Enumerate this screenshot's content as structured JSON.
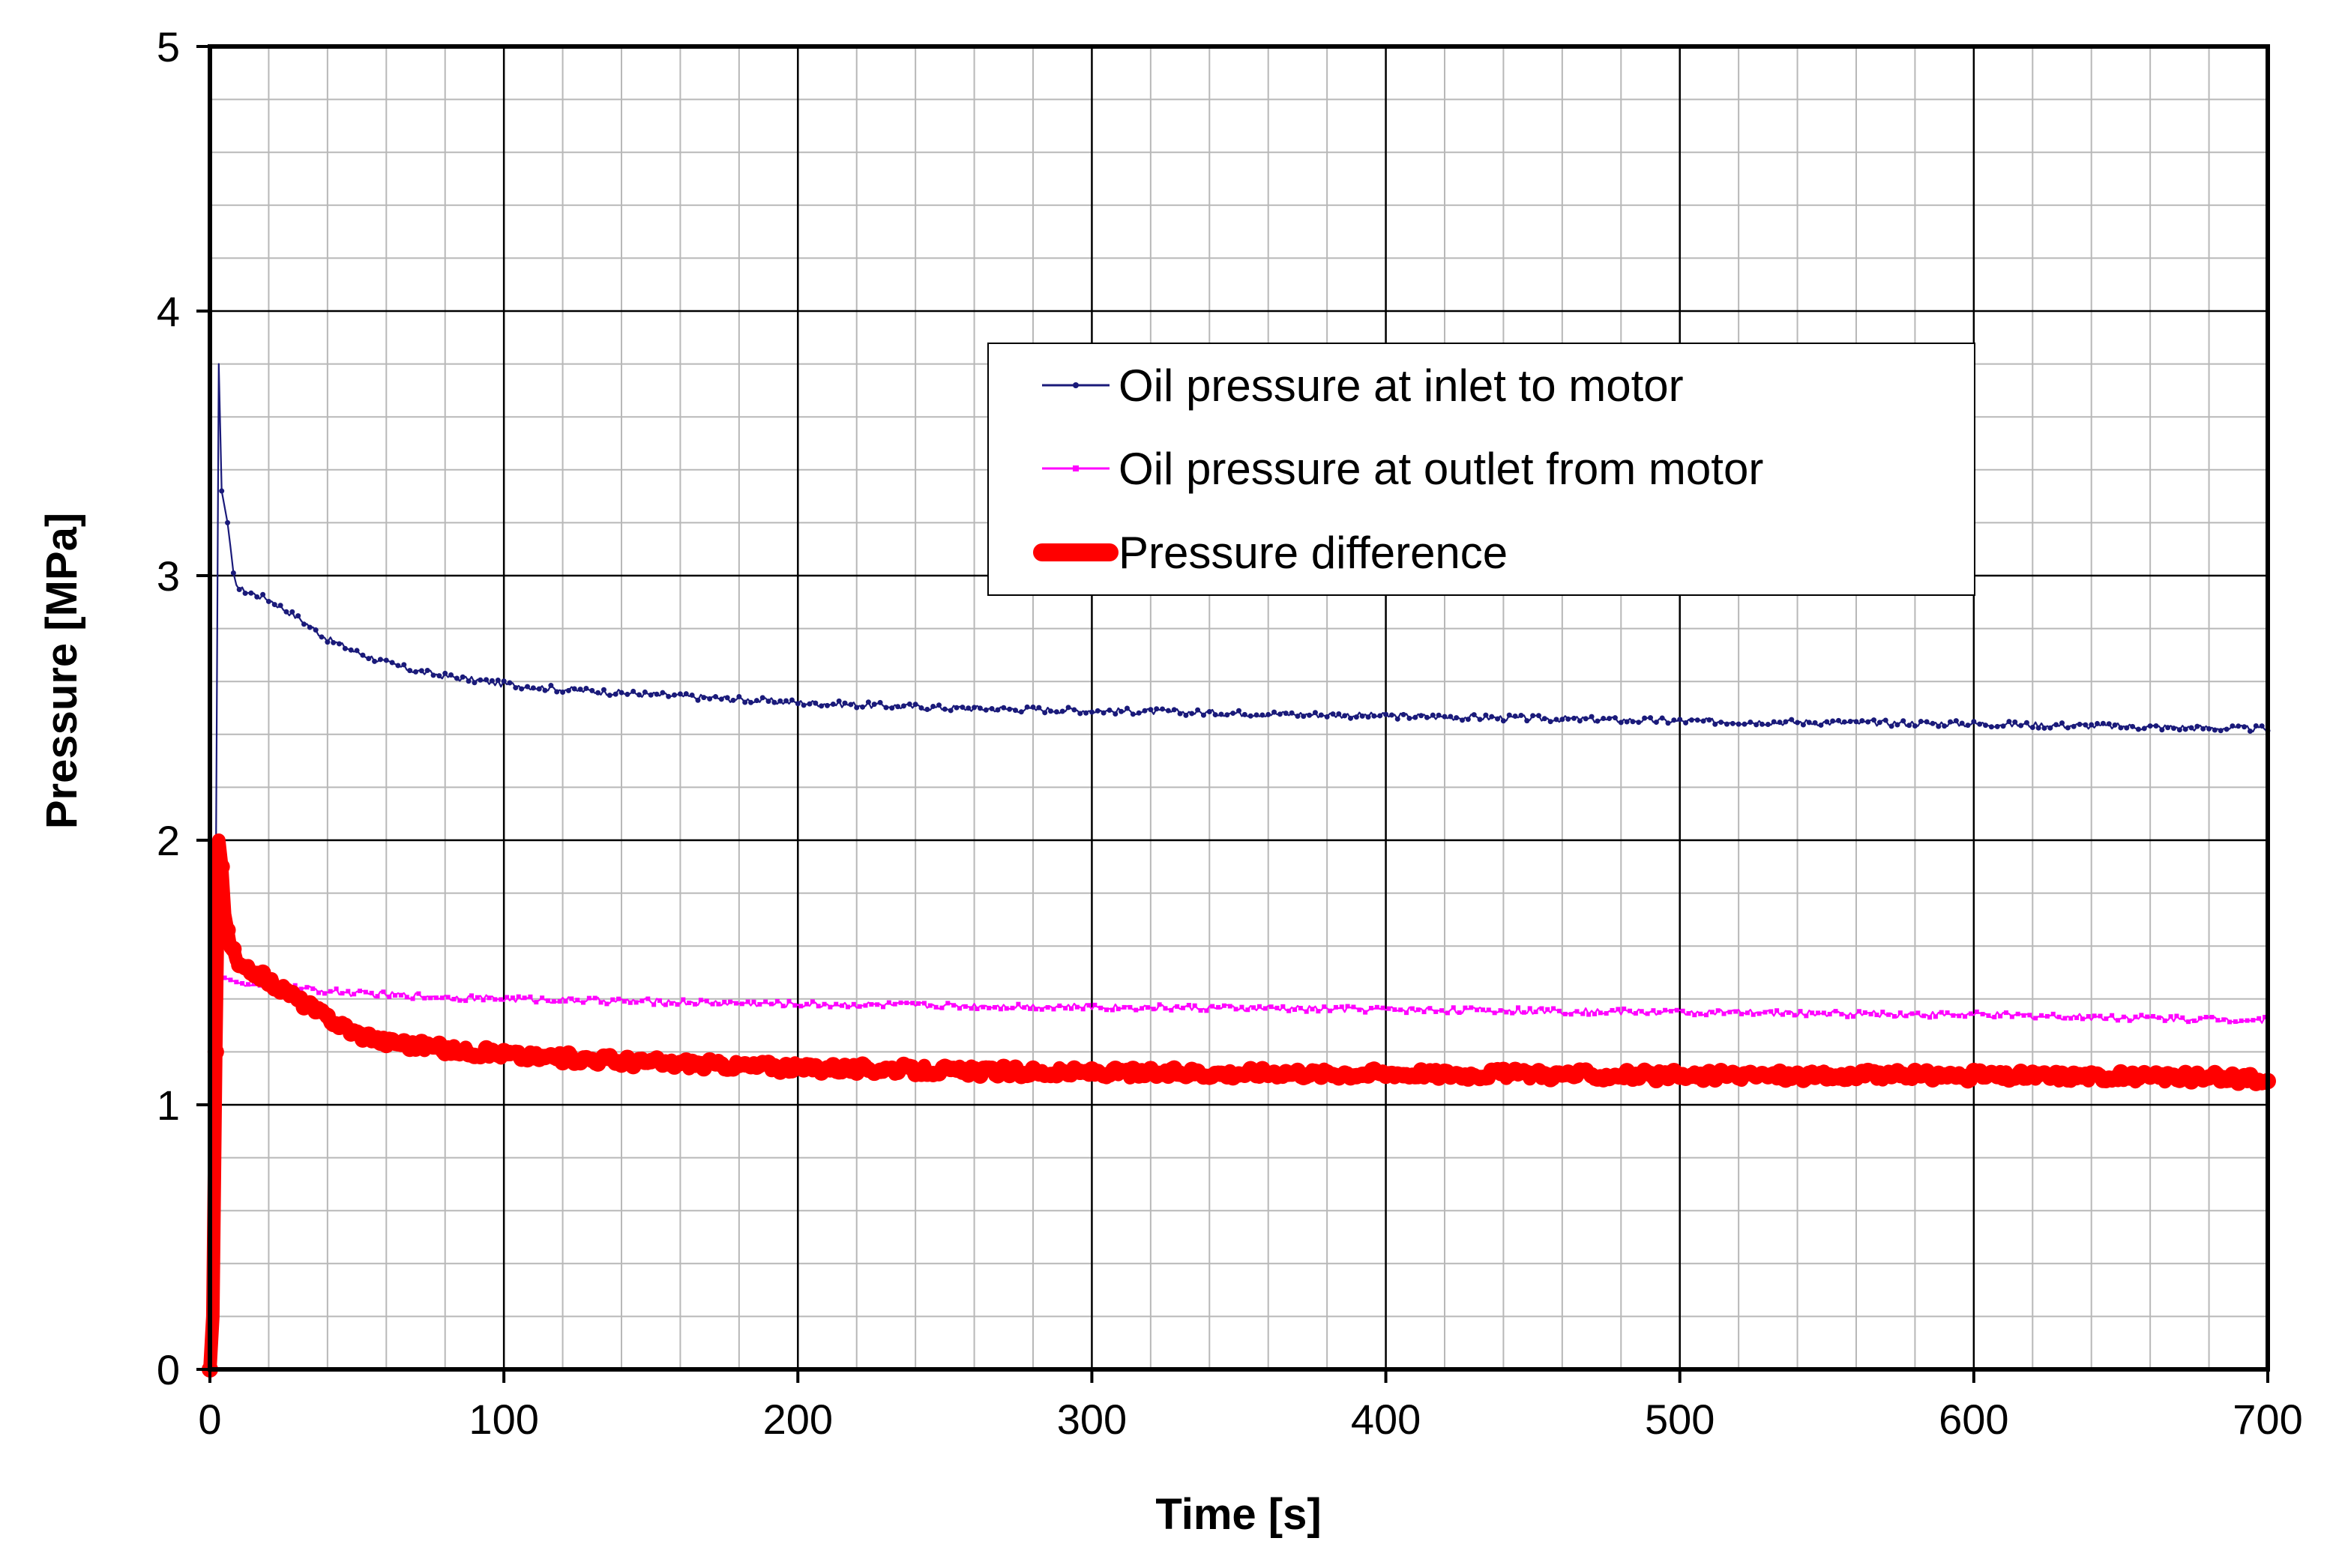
{
  "chart_data": {
    "type": "line",
    "title": "",
    "xlabel": "Time [s]",
    "ylabel": "Pressure [MPa]",
    "xlim": [
      0,
      700
    ],
    "ylim": [
      0,
      5
    ],
    "x_major_ticks": [
      0,
      100,
      200,
      300,
      400,
      500,
      600,
      700
    ],
    "y_major_ticks": [
      0,
      1,
      2,
      3,
      4,
      5
    ],
    "x_minor_step": 20,
    "y_minor_step": 0.2,
    "grid": true,
    "legend_position": "upper-middle-right",
    "series": [
      {
        "name": "Oil pressure at inlet to motor",
        "color": "#1a1a7a",
        "marker": "diamond",
        "line_style": "thin",
        "noise": 0.012,
        "points": [
          [
            0,
            0
          ],
          [
            2,
            1.8
          ],
          [
            3,
            3.8
          ],
          [
            4,
            3.32
          ],
          [
            6,
            3.2
          ],
          [
            8,
            3.0
          ],
          [
            10,
            2.95
          ],
          [
            15,
            2.93
          ],
          [
            20,
            2.91
          ],
          [
            30,
            2.84
          ],
          [
            40,
            2.76
          ],
          [
            50,
            2.71
          ],
          [
            60,
            2.67
          ],
          [
            70,
            2.64
          ],
          [
            80,
            2.62
          ],
          [
            100,
            2.59
          ],
          [
            120,
            2.57
          ],
          [
            150,
            2.55
          ],
          [
            200,
            2.52
          ],
          [
            250,
            2.5
          ],
          [
            300,
            2.49
          ],
          [
            350,
            2.48
          ],
          [
            400,
            2.47
          ],
          [
            450,
            2.46
          ],
          [
            500,
            2.45
          ],
          [
            550,
            2.445
          ],
          [
            600,
            2.44
          ],
          [
            650,
            2.43
          ],
          [
            700,
            2.42
          ]
        ]
      },
      {
        "name": "Oil pressure at outlet from motor",
        "color": "#ff00ff",
        "marker": "square",
        "line_style": "thin",
        "noise": 0.012,
        "points": [
          [
            5,
            1.48
          ],
          [
            10,
            1.46
          ],
          [
            20,
            1.45
          ],
          [
            50,
            1.42
          ],
          [
            100,
            1.4
          ],
          [
            150,
            1.39
          ],
          [
            200,
            1.38
          ],
          [
            300,
            1.37
          ],
          [
            400,
            1.36
          ],
          [
            500,
            1.35
          ],
          [
            600,
            1.34
          ],
          [
            700,
            1.32
          ]
        ]
      },
      {
        "name": "Pressure difference",
        "color": "#ff0000",
        "marker": "circle",
        "line_style": "thick",
        "noise": 0.018,
        "points": [
          [
            0,
            0
          ],
          [
            1,
            0.2
          ],
          [
            2,
            1.2
          ],
          [
            3,
            2.0
          ],
          [
            4,
            1.9
          ],
          [
            5,
            1.72
          ],
          [
            7,
            1.6
          ],
          [
            10,
            1.52
          ],
          [
            15,
            1.5
          ],
          [
            20,
            1.47
          ],
          [
            30,
            1.4
          ],
          [
            40,
            1.33
          ],
          [
            50,
            1.27
          ],
          [
            60,
            1.24
          ],
          [
            80,
            1.21
          ],
          [
            100,
            1.19
          ],
          [
            150,
            1.16
          ],
          [
            200,
            1.14
          ],
          [
            250,
            1.13
          ],
          [
            300,
            1.12
          ],
          [
            400,
            1.12
          ],
          [
            500,
            1.11
          ],
          [
            600,
            1.11
          ],
          [
            700,
            1.1
          ]
        ]
      }
    ]
  }
}
